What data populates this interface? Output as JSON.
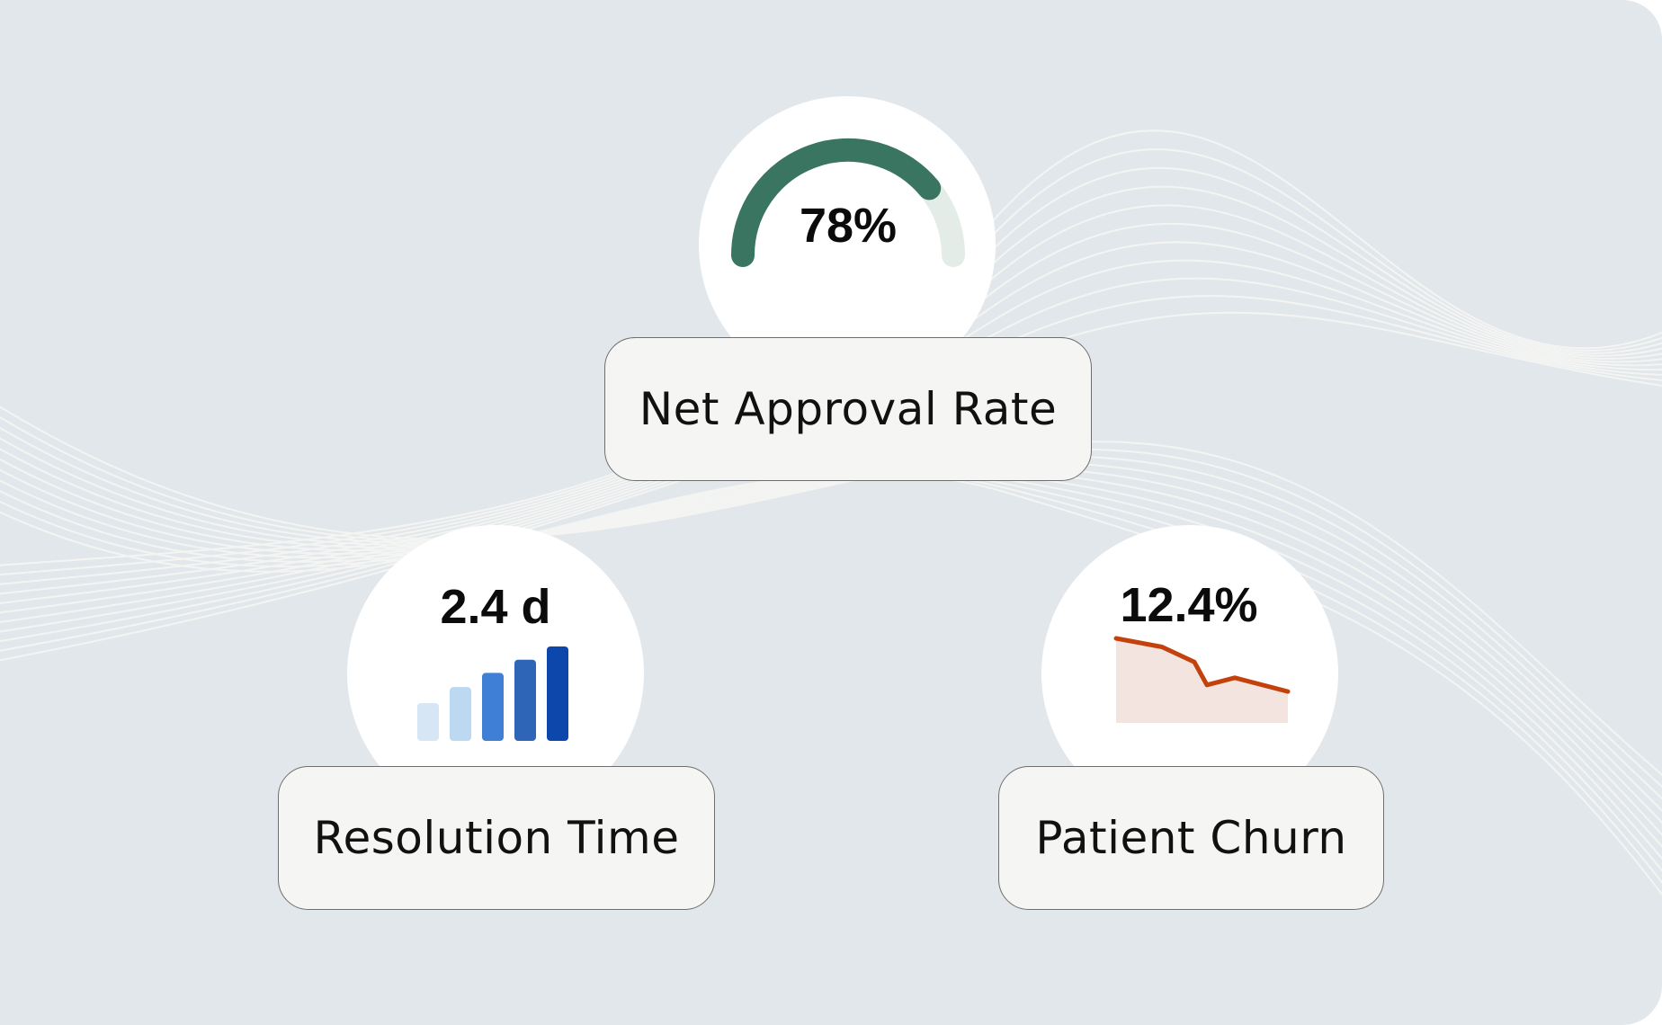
{
  "colors": {
    "background": "#e2e7eb",
    "wave_lines": "#f4f5f3",
    "gauge_fill": "#3a7562",
    "gauge_track": "#e4ece8",
    "bars": [
      "#d6e6f5",
      "#bcd9f1",
      "#3f7fd6",
      "#2f65b6",
      "#0d47ab"
    ],
    "churn_line": "#c2410c",
    "churn_area": "#f3e4e0"
  },
  "metrics": {
    "approval": {
      "label": "Net Approval Rate",
      "value_text": "78%",
      "gauge_fraction": 0.78,
      "icon": "gauge-icon"
    },
    "resolution": {
      "label": "Resolution Time",
      "value_text": "2.4 d",
      "icon": "bar-chart-icon",
      "bar_levels": [
        0.4,
        0.57,
        0.72,
        0.86,
        1.0
      ]
    },
    "churn": {
      "label": "Patient Churn",
      "value_text": "12.4%",
      "icon": "sparkline-icon",
      "sparkline_levels": [
        1.0,
        0.87,
        0.64,
        0.29,
        0.4,
        0.19
      ]
    }
  }
}
